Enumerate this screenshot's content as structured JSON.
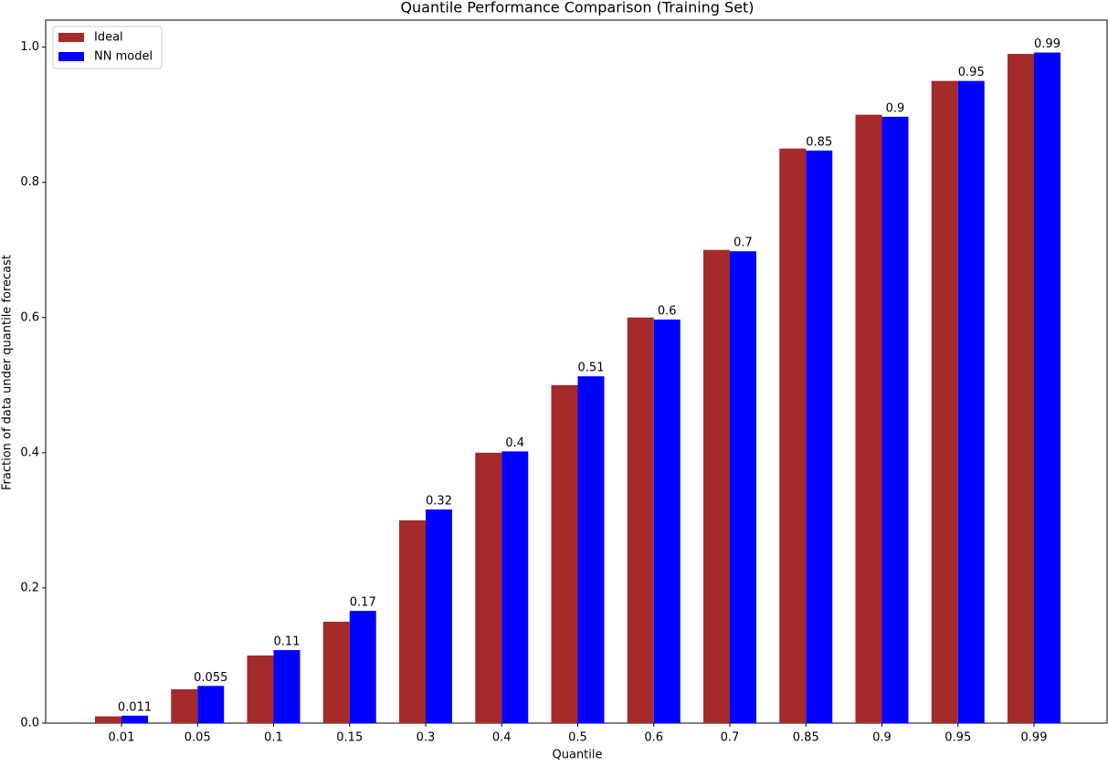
{
  "chart_data": {
    "type": "bar",
    "title": "Quantile Performance Comparison (Training Set)",
    "x_label": "Quantile",
    "y_label": "Fraction of data under quantile forecast",
    "categories": [
      "0.01",
      "0.05",
      "0.1",
      "0.15",
      "0.3",
      "0.4",
      "0.5",
      "0.6",
      "0.7",
      "0.85",
      "0.9",
      "0.95",
      "0.99"
    ],
    "series": [
      {
        "name": "Ideal",
        "color": "#a52a2a",
        "values": [
          0.01,
          0.05,
          0.1,
          0.15,
          0.3,
          0.4,
          0.5,
          0.6,
          0.7,
          0.85,
          0.9,
          0.95,
          0.99
        ]
      },
      {
        "name": "NN model",
        "color": "#0000ff",
        "values": [
          0.011,
          0.055,
          0.108,
          0.166,
          0.316,
          0.402,
          0.513,
          0.597,
          0.698,
          0.847,
          0.897,
          0.95,
          0.992
        ],
        "value_labels": [
          "0.011",
          "0.055",
          "0.11",
          "0.17",
          "0.32",
          "0.4",
          "0.51",
          "0.6",
          "0.7",
          "0.85",
          "0.9",
          "0.95",
          "0.99"
        ]
      }
    ],
    "ylim": [
      0,
      1.04
    ],
    "yticks": [
      {
        "value": 0,
        "label": "0.0"
      },
      0.2,
      0.4,
      0.6,
      0.8,
      {
        "value": 1,
        "label": "1.0"
      }
    ],
    "legend": "upper left"
  }
}
